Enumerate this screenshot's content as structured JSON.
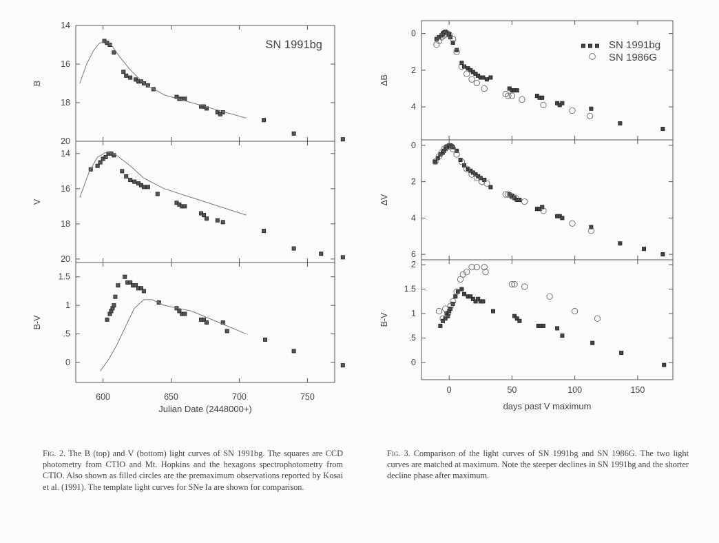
{
  "figure2": {
    "annotation": "SN 1991bg",
    "xlabel": "Julian Date (2448000+)",
    "xticks": [
      "600",
      "650",
      "700",
      "750"
    ],
    "xlim": [
      580,
      770
    ],
    "panels": [
      {
        "ylabel": "B",
        "yticks": [
          "14",
          "16",
          "18",
          "20"
        ],
        "ylim": [
          14,
          20
        ],
        "inverted": true
      },
      {
        "ylabel": "V",
        "yticks": [
          "14",
          "16",
          "18",
          "20"
        ],
        "ylim": [
          13.3,
          20.2
        ],
        "inverted": true
      },
      {
        "ylabel": "B-V",
        "yticks": [
          "0",
          ".5",
          "1",
          "1.5"
        ],
        "ylim": [
          -0.35,
          1.75
        ],
        "inverted": false
      }
    ]
  },
  "figure3": {
    "legend": [
      {
        "label": "SN 1991bg",
        "marker": "filled"
      },
      {
        "label": "SN 1986G",
        "marker": "open-circle"
      }
    ],
    "xlabel": "days past V maximum",
    "xticks": [
      "0",
      "50",
      "100",
      "150"
    ],
    "xlim": [
      -22,
      178
    ],
    "panels": [
      {
        "ylabel": "ΔB",
        "yticks": [
          "0",
          "2",
          "4"
        ],
        "ylim": [
          -0.7,
          5.8
        ],
        "inverted": true
      },
      {
        "ylabel": "ΔV",
        "yticks": [
          "0",
          "2",
          "4",
          "6"
        ],
        "ylim": [
          -0.3,
          6.3
        ],
        "inverted": true
      },
      {
        "ylabel": "B-V",
        "yticks": [
          "0",
          ".5",
          "1",
          "1.5",
          "2"
        ],
        "ylim": [
          -0.35,
          2.1
        ],
        "inverted": false
      }
    ]
  },
  "chart_data": [
    {
      "type": "scatter",
      "title": "SN 1991bg",
      "xlabel": "Julian Date (2448000+)",
      "ylabel": "B",
      "xlim": [
        580,
        770
      ],
      "ylim": [
        14,
        20
      ],
      "series": [
        {
          "marker": "square",
          "x": [
            601,
            603,
            605,
            608,
            615,
            617,
            620,
            624,
            626,
            628,
            630,
            633,
            637,
            654,
            656,
            658,
            660,
            672,
            674,
            676,
            684,
            686,
            688,
            718,
            740,
            776
          ],
          "y": [
            14.8,
            14.9,
            15.0,
            15.4,
            16.4,
            16.6,
            16.7,
            16.8,
            16.9,
            16.9,
            17.0,
            17.1,
            17.3,
            17.7,
            17.8,
            17.8,
            17.8,
            18.2,
            18.2,
            18.3,
            18.5,
            18.6,
            18.5,
            18.9,
            19.6,
            19.9
          ]
        },
        {
          "marker": "template-line",
          "x": [
            583,
            588,
            593,
            597,
            601,
            606,
            612,
            620,
            630,
            645,
            665,
            685,
            705
          ],
          "y": [
            17.0,
            16.0,
            15.3,
            14.95,
            14.8,
            15.0,
            15.6,
            16.3,
            17.0,
            17.6,
            18.0,
            18.4,
            18.8
          ]
        }
      ]
    },
    {
      "type": "scatter",
      "xlabel": "Julian Date (2448000+)",
      "ylabel": "V",
      "xlim": [
        580,
        770
      ],
      "ylim": [
        13.3,
        20.2
      ],
      "series": [
        {
          "marker": "square",
          "x": [
            591,
            596,
            598,
            600,
            602,
            604,
            606,
            608,
            614,
            617,
            620,
            623,
            626,
            628,
            630,
            633,
            640,
            654,
            656,
            658,
            660,
            672,
            674,
            676,
            684,
            688,
            718,
            740,
            760,
            776
          ],
          "y": [
            14.9,
            14.7,
            14.5,
            14.3,
            14.2,
            14.0,
            14.0,
            14.1,
            15.0,
            15.3,
            15.5,
            15.6,
            15.7,
            15.8,
            15.9,
            15.9,
            16.3,
            16.8,
            16.9,
            17.0,
            17.0,
            17.4,
            17.5,
            17.7,
            17.8,
            17.9,
            18.4,
            19.4,
            19.7,
            19.9
          ]
        },
        {
          "marker": "template-line",
          "x": [
            583,
            590,
            596,
            603,
            610,
            620,
            630,
            645,
            665,
            685,
            705
          ],
          "y": [
            16.5,
            15.0,
            14.2,
            13.9,
            14.1,
            14.7,
            15.4,
            16.0,
            16.5,
            17.0,
            17.5
          ]
        }
      ]
    },
    {
      "type": "scatter",
      "xlabel": "Julian Date (2448000+)",
      "ylabel": "B-V",
      "xlim": [
        580,
        770
      ],
      "ylim": [
        -0.35,
        1.75
      ],
      "series": [
        {
          "marker": "square",
          "x": [
            603,
            605,
            606,
            607,
            608,
            609,
            611,
            616,
            618,
            620,
            622,
            624,
            626,
            628,
            630,
            641,
            654,
            656,
            658,
            660,
            672,
            674,
            676,
            688,
            691,
            719,
            740,
            776
          ],
          "y": [
            0.75,
            0.85,
            0.9,
            0.95,
            1.0,
            1.15,
            1.35,
            1.5,
            1.4,
            1.4,
            1.35,
            1.35,
            1.3,
            1.3,
            1.25,
            1.05,
            0.95,
            0.9,
            0.85,
            0.85,
            0.75,
            0.75,
            0.7,
            0.7,
            0.55,
            0.4,
            0.2,
            -0.05
          ]
        },
        {
          "marker": "template-line",
          "x": [
            598,
            604,
            610,
            617,
            623,
            630,
            636,
            645,
            665,
            685,
            705
          ],
          "y": [
            -0.15,
            0.05,
            0.3,
            0.65,
            0.95,
            1.1,
            1.1,
            1.0,
            0.9,
            0.7,
            0.5
          ]
        }
      ]
    },
    {
      "type": "scatter",
      "xlabel": "days past V maximum",
      "ylabel": "ΔB",
      "xlim": [
        -22,
        178
      ],
      "ylim": [
        -0.7,
        5.8
      ],
      "series": [
        {
          "name": "SN 1991bg",
          "marker": "filled",
          "x": [
            -10,
            -8,
            -6,
            -5,
            -4,
            -3,
            -2,
            -1,
            0,
            1,
            3,
            6,
            10,
            12,
            15,
            17,
            19,
            21,
            23,
            25,
            27,
            30,
            33,
            48,
            50,
            52,
            54,
            70,
            72,
            74,
            86,
            88,
            90,
            113,
            136,
            170
          ],
          "y": [
            0.3,
            0.2,
            0.1,
            0.0,
            -0.05,
            -0.1,
            -0.05,
            0.0,
            0.05,
            0.2,
            0.5,
            0.9,
            1.6,
            1.8,
            1.9,
            2.0,
            2.1,
            2.2,
            2.3,
            2.4,
            2.4,
            2.5,
            2.4,
            3.0,
            3.1,
            3.1,
            3.1,
            3.4,
            3.5,
            3.5,
            3.8,
            3.9,
            3.8,
            4.1,
            4.9,
            5.2
          ]
        },
        {
          "name": "SN 1986G",
          "marker": "open-circle",
          "x": [
            -10,
            -8,
            -6,
            -4,
            -2,
            0,
            3,
            6,
            10,
            14,
            18,
            22,
            28,
            45,
            47,
            50,
            58,
            75,
            98,
            112
          ],
          "y": [
            0.6,
            0.4,
            0.2,
            0.1,
            0.0,
            0.05,
            0.3,
            1.0,
            1.8,
            2.2,
            2.5,
            2.7,
            3.0,
            3.3,
            3.4,
            3.4,
            3.6,
            3.9,
            4.2,
            4.5
          ]
        }
      ]
    },
    {
      "type": "scatter",
      "xlabel": "days past V maximum",
      "ylabel": "ΔV",
      "xlim": [
        -22,
        178
      ],
      "ylim": [
        -0.3,
        6.3
      ],
      "series": [
        {
          "name": "SN 1991bg",
          "marker": "filled",
          "x": [
            -11,
            -9,
            -7,
            -5,
            -4,
            -3,
            -2,
            -1,
            0,
            1,
            2,
            3,
            6,
            9,
            12,
            15,
            17,
            19,
            21,
            23,
            25,
            28,
            33,
            48,
            50,
            52,
            54,
            56,
            70,
            72,
            74,
            86,
            88,
            90,
            113,
            136,
            155,
            170
          ],
          "y": [
            0.9,
            0.7,
            0.5,
            0.4,
            0.3,
            0.2,
            0.1,
            0.05,
            0.0,
            0.0,
            0.05,
            0.1,
            0.3,
            0.8,
            1.1,
            1.3,
            1.4,
            1.5,
            1.6,
            1.7,
            1.8,
            1.9,
            2.3,
            2.7,
            2.8,
            2.9,
            3.0,
            3.0,
            3.5,
            3.5,
            3.4,
            3.9,
            3.9,
            4.0,
            4.5,
            5.4,
            5.7,
            6.0
          ]
        },
        {
          "name": "SN 1986G",
          "marker": "open-circle",
          "x": [
            -11,
            -8,
            -6,
            -4,
            -2,
            0,
            3,
            6,
            10,
            14,
            18,
            22,
            26,
            30,
            45,
            47,
            50,
            53,
            60,
            75,
            98,
            113
          ],
          "y": [
            0.9,
            0.6,
            0.4,
            0.2,
            0.1,
            0.05,
            0.2,
            0.5,
            0.9,
            1.3,
            1.6,
            1.8,
            2.0,
            2.1,
            2.7,
            2.7,
            2.8,
            2.9,
            3.1,
            3.6,
            4.3,
            4.7
          ]
        }
      ]
    },
    {
      "type": "scatter",
      "xlabel": "days past V maximum",
      "ylabel": "B-V",
      "xlim": [
        -22,
        178
      ],
      "ylim": [
        -0.35,
        2.1
      ],
      "series": [
        {
          "name": "SN 1991bg",
          "marker": "filled",
          "x": [
            -7,
            -5,
            -3,
            -2,
            -1,
            0,
            1,
            3,
            5,
            7,
            10,
            12,
            15,
            17,
            19,
            21,
            23,
            25,
            27,
            35,
            52,
            54,
            56,
            71,
            73,
            75,
            86,
            90,
            114,
            137,
            171
          ],
          "y": [
            0.75,
            0.85,
            0.9,
            1.0,
            0.95,
            1.05,
            1.1,
            1.2,
            1.35,
            1.45,
            1.5,
            1.4,
            1.35,
            1.35,
            1.3,
            1.25,
            1.3,
            1.25,
            1.25,
            1.05,
            0.95,
            0.9,
            0.85,
            0.75,
            0.75,
            0.75,
            0.7,
            0.55,
            0.4,
            0.2,
            -0.05
          ]
        },
        {
          "name": "SN 1986G",
          "marker": "open-circle",
          "x": [
            -8,
            -5,
            -3,
            -1,
            1,
            3,
            6,
            9,
            11,
            14,
            18,
            22,
            28,
            29,
            50,
            52,
            60,
            80,
            100,
            118
          ],
          "y": [
            1.05,
            0.9,
            1.1,
            1.0,
            1.15,
            1.25,
            1.45,
            1.7,
            1.8,
            1.85,
            1.95,
            1.95,
            1.95,
            1.85,
            1.6,
            1.6,
            1.55,
            1.35,
            1.05,
            0.9
          ]
        }
      ]
    }
  ],
  "captions": {
    "fig2": {
      "label": "Fig. 2.",
      "text": "The B (top) and V (bottom) light curves of SN 1991bg. The squares are CCD photometry from CTIO and Mt. Hopkins and the hexagons spectrophotometry from CTIO. Also shown as filled circles are the premaximum observations reported by Kosai et al. (1991). The template light curves for SNe Ia are shown for comparison."
    },
    "fig3": {
      "label": "Fig. 3.",
      "text": "Comparison of the light curves of SN 1991bg and SN 1986G. The two light curves are matched at maximum. Note the steeper declines in SN 1991bg and the shorter decline phase after maximum."
    }
  }
}
